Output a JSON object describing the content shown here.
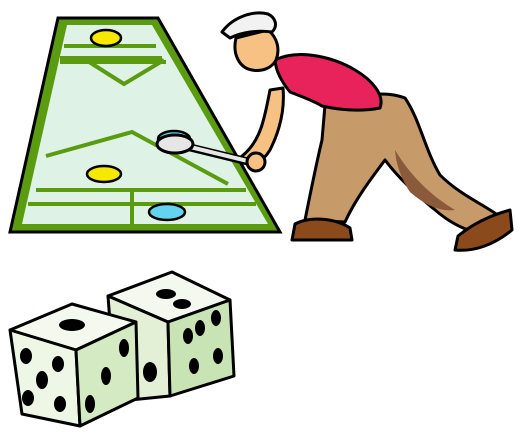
{
  "scene": {
    "subjects": [
      "shuffleboard-court",
      "shuffleboard-player",
      "dice-pair"
    ],
    "dice_faces_visible": {
      "left_die": [
        1,
        5,
        3
      ],
      "right_die": [
        2,
        5
      ]
    },
    "puck_colors": [
      "#f7e800",
      "#63d3f0"
    ],
    "colors": {
      "outline": "#000000",
      "court_border": "#5a9b10",
      "court_surface": "#dff2e6",
      "court_lines": "#5a9b10",
      "shirt": "#e8235c",
      "pants": "#c79a6a",
      "pants_shadow": "#8a5a3a",
      "skin": "#f7c184",
      "cap": "#f2f2f2",
      "shoes": "#8b4a1c",
      "cue_stick": "#e6e6e6",
      "dice_face": "#f4f9ef",
      "dice_shade": "#c9e4b4",
      "pips": "#000000"
    }
  }
}
